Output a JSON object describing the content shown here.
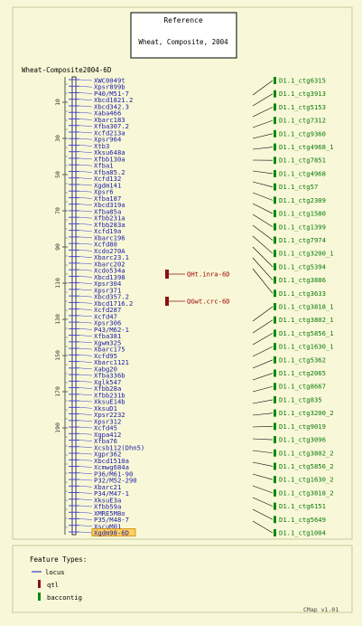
{
  "reference": {
    "title": "Reference",
    "map": "Wheat, Composite, 2004"
  },
  "map_name": "Wheat-Composite2004-6D",
  "scale_ticks": [
    "10",
    "30",
    "50",
    "70",
    "90",
    "110",
    "130",
    "150",
    "170",
    "190"
  ],
  "markers": [
    "XWC0049t",
    "Xpsr899b",
    "P40/M51-7",
    "Xbcd1821.2",
    "Xbcd342.3",
    "Xaba466",
    "Xbarc183",
    "Xfba307.2",
    "Xcfd213a",
    "Xpsr964",
    "Xtb3",
    "Xksu648a",
    "Xfbb130a",
    "Xfba1",
    "Xfba85.2",
    "Xcfd132",
    "Xgdm141",
    "Xpsr6",
    "Xfba187",
    "Xbcd319a",
    "Xfba85a",
    "Xfbb231a",
    "Xfbb283a",
    "Xcfd19a",
    "Xbarc196",
    "Xcfd80",
    "Xcdo270A",
    "Xbarc23.1",
    "Xbarc202",
    "Xcdo534a",
    "Xbcd1398",
    "Xpsr304",
    "Xpsr371",
    "Xbcd357.2",
    "Xbcd1716.2",
    "Xcfd287",
    "Xcfd47",
    "Xpsr306",
    "P43/M62-1",
    "Xfba381",
    "Xgwm325",
    "Xbarc175",
    "Xcfd95",
    "Xbarc1121",
    "Xabg20",
    "Xfba336b",
    "Xglk547",
    "Xfbb28a",
    "Xfbb231b",
    "XksuE14b",
    "XksuD1",
    "Xpsr2232",
    "Xpsr312",
    "Xcfd45",
    "Xgpa412",
    "Xfba76",
    "Xcsb112(Dhn5)",
    "Xgpr362",
    "Xbcd1510a",
    "Xcmwg684a",
    "P36/M61-90",
    "P32/M52-290",
    "Xbarc21",
    "P34/M47-1",
    "XksuE3a",
    "Xfbb59a",
    "XMRE5M8o",
    "P35/M48-7",
    "XscuM01",
    "Xgdm98-6D"
  ],
  "contigs": [
    "D1.1_ctg6315",
    "D1.1_ctg3913",
    "D1.1_ctg5153",
    "D1.1_ctg7312",
    "D1.1_ctg9360",
    "D1.1_ctg4968_1",
    "D1.1_ctg7851",
    "D1.1_ctg4968",
    "D1.1_ctg57",
    "D1.1_ctg2309",
    "D1.1_ctg1580",
    "D1.1_ctg1399",
    "D1.1_ctg7974",
    "D1.1_ctg3200_1",
    "D1.1_ctg5394",
    "D1.1_ctg3886",
    "D1.1_ctg3633",
    "D1.1_ctg3818_1",
    "D1.1_ctg3802_1",
    "D1.1_ctg5856_1",
    "D1.1_ctg1630_1",
    "D1.1_ctg5362",
    "D1.1_ctg2065",
    "D1.1_ctg8667",
    "D1.1_ctg835",
    "D1.1_ctg3200_2",
    "D1.1_ctg9019",
    "D1.1_ctg3096",
    "D1.1_ctg3802_2",
    "D1.1_ctg5856_2",
    "D1.1_ctg1630_2",
    "D1.1_ctg3818_2",
    "D1.1_ctg6151",
    "D1.1_ctg5649",
    "D1.1_ctg1004"
  ],
  "qtls": [
    "QHt.inra-6D",
    "QGwt.crc-6D"
  ],
  "legend": {
    "title": "Feature Types:",
    "items": [
      {
        "label": "locus",
        "color": "#3a3ad0"
      },
      {
        "label": "qtl",
        "color": "#8b1010"
      },
      {
        "label": "baccontig",
        "color": "#0a8a0a"
      }
    ]
  },
  "footer": "CMap v1.01"
}
